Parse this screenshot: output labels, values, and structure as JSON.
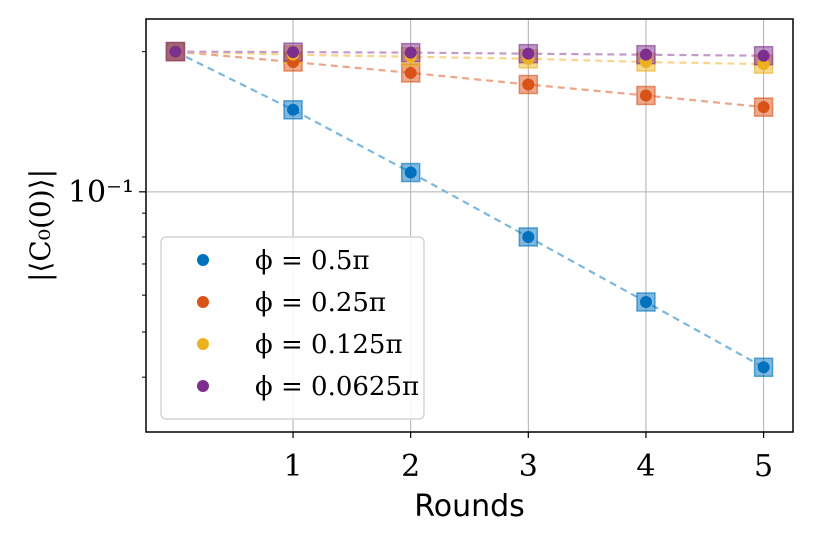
{
  "chart_data": {
    "type": "line",
    "xlabel": "Rounds",
    "ylabel": "|⟨C₀(0)⟩|",
    "y_scale": "log",
    "xlim": [
      -0.25,
      5.25
    ],
    "ylim": [
      0.0305,
      0.235
    ],
    "x_ticks": [
      1,
      2,
      3,
      4,
      5
    ],
    "y_ticks": [
      {
        "value": 0.1,
        "label": "10⁻¹"
      }
    ],
    "grid": true,
    "legend": {
      "location": "lower-left",
      "marker": "circle"
    },
    "x": [
      0,
      1,
      2,
      3,
      4,
      5
    ],
    "series": [
      {
        "name": "ϕ = 0.5π",
        "color": "#0072bd",
        "line_color": "#7db8dc",
        "values": [
          0.2,
          0.15,
          0.11,
          0.08,
          0.058,
          0.042
        ],
        "fit": [
          0.2,
          0.15,
          0.11,
          0.08,
          0.058,
          0.042
        ]
      },
      {
        "name": "ϕ = 0.25π",
        "color": "#d95319",
        "line_color": "#eca68a",
        "values": [
          0.2,
          0.19,
          0.18,
          0.17,
          0.161,
          0.152
        ],
        "fit": [
          0.2,
          0.19,
          0.18,
          0.17,
          0.161,
          0.152
        ]
      },
      {
        "name": "ϕ = 0.125π",
        "color": "#edb120",
        "line_color": "#f5d68c",
        "values": [
          0.2,
          0.197,
          0.195,
          0.193,
          0.19,
          0.188
        ],
        "fit": [
          0.2,
          0.197,
          0.195,
          0.193,
          0.19,
          0.188
        ]
      },
      {
        "name": "ϕ = 0.0625π",
        "color": "#7e2f8e",
        "line_color": "#c49acb",
        "values": [
          0.2,
          0.1995,
          0.199,
          0.198,
          0.197,
          0.196
        ],
        "fit": [
          0.2,
          0.1995,
          0.199,
          0.198,
          0.197,
          0.196
        ]
      }
    ]
  }
}
